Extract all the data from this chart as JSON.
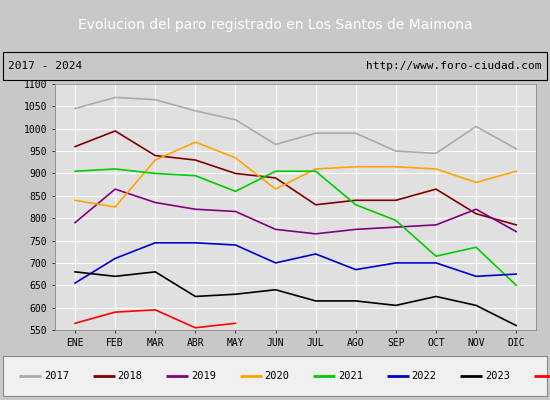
{
  "title": "Evolucion del paro registrado en Los Santos de Maimona",
  "subtitle_left": "2017 - 2024",
  "subtitle_right": "http://www.foro-ciudad.com",
  "ylim": [
    550,
    1100
  ],
  "months": [
    "ENE",
    "FEB",
    "MAR",
    "ABR",
    "MAY",
    "JUN",
    "JUL",
    "AGO",
    "SEP",
    "OCT",
    "NOV",
    "DIC"
  ],
  "series": {
    "2017": {
      "color": "#aaaaaa",
      "values": [
        1045,
        1070,
        1065,
        1040,
        1020,
        965,
        990,
        990,
        950,
        945,
        1005,
        955
      ]
    },
    "2018": {
      "color": "#800000",
      "values": [
        960,
        995,
        940,
        930,
        900,
        890,
        830,
        840,
        840,
        865,
        810,
        785
      ]
    },
    "2019": {
      "color": "#800080",
      "values": [
        790,
        865,
        835,
        820,
        815,
        775,
        765,
        775,
        780,
        785,
        820,
        770
      ]
    },
    "2020": {
      "color": "#ffa500",
      "values": [
        840,
        825,
        930,
        970,
        935,
        865,
        910,
        915,
        915,
        910,
        880,
        905
      ]
    },
    "2021": {
      "color": "#00cc00",
      "values": [
        905,
        910,
        900,
        895,
        860,
        905,
        905,
        830,
        795,
        715,
        735,
        650
      ]
    },
    "2022": {
      "color": "#0000cc",
      "values": [
        655,
        710,
        745,
        745,
        740,
        700,
        720,
        685,
        700,
        700,
        670,
        675
      ]
    },
    "2023": {
      "color": "#000000",
      "values": [
        680,
        670,
        680,
        625,
        630,
        640,
        615,
        615,
        605,
        625,
        605,
        560
      ]
    },
    "2024": {
      "color": "#ff0000",
      "values": [
        565,
        590,
        595,
        555,
        565
      ]
    }
  },
  "fig_bg_color": "#c8c8c8",
  "plot_bg_color": "#e0e0e0",
  "title_bg_color": "#4472c4",
  "title_text_color": "#ffffff",
  "subtitle_bg_color": "#d8d8d8",
  "legend_bg_color": "#f0f0f0",
  "grid_color": "#ffffff",
  "title_fontsize": 10,
  "subtitle_fontsize": 8,
  "tick_fontsize": 7,
  "legend_fontsize": 7.5
}
